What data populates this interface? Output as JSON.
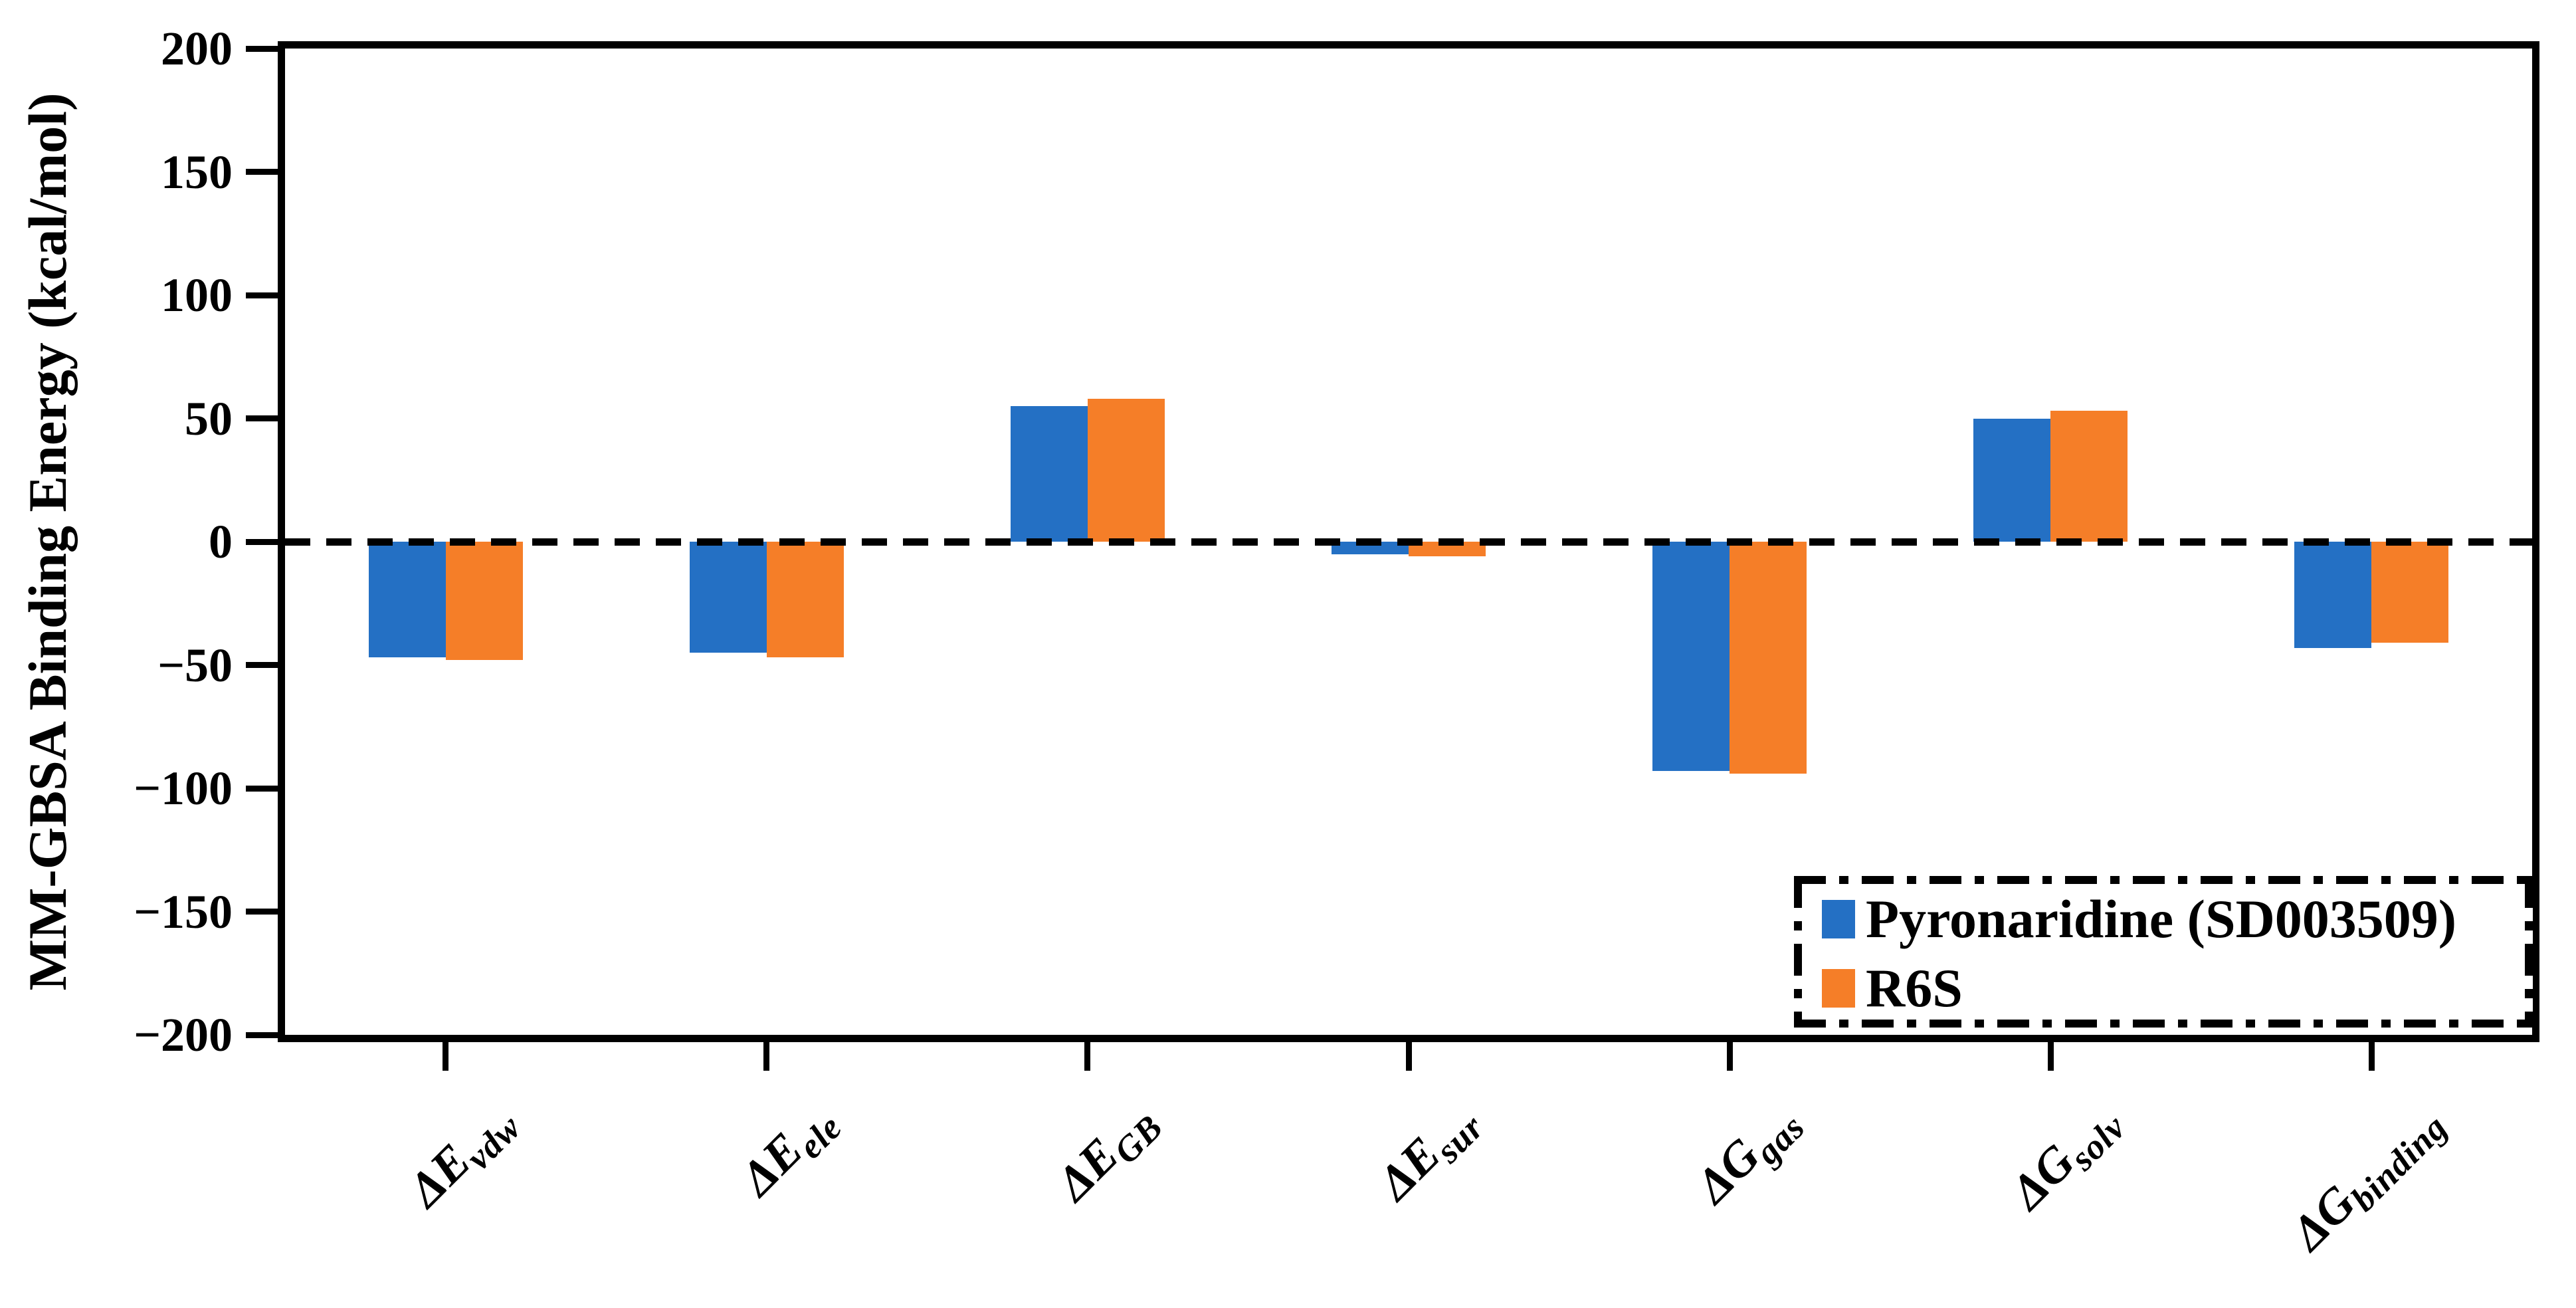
{
  "chart_data": {
    "type": "bar",
    "title": "",
    "xlabel": "",
    "ylabel": "MM-GBSA Binding Energy (kcal/mol)",
    "ylim": [
      -200,
      200
    ],
    "ytick_step": 50,
    "ytick_labels": [
      "200",
      "150",
      "100",
      "50",
      "0",
      "−50",
      "−100",
      "−150",
      "−200"
    ],
    "ytick_values": [
      200,
      150,
      100,
      50,
      0,
      -50,
      -100,
      -150,
      -200
    ],
    "grid": "off",
    "zero_line": "dashed",
    "legend_position": "lower-right-inside",
    "legend_border": "dash-dot",
    "categories": [
      {
        "main": "ΔE",
        "sub": "vdw"
      },
      {
        "main": "ΔE",
        "sub": "ele"
      },
      {
        "main": "ΔE",
        "sub": "GB"
      },
      {
        "main": "ΔE",
        "sub": "sur"
      },
      {
        "main": "ΔG",
        "sub": "gas"
      },
      {
        "main": "ΔG",
        "sub": "solv"
      },
      {
        "main": "ΔG",
        "sub": "binding"
      }
    ],
    "series": [
      {
        "name": "Pyronaridine (SD003509)",
        "color": "#2470C4",
        "values": [
          -47,
          -45,
          55,
          -5,
          -93,
          50,
          -43
        ]
      },
      {
        "name": "R6S",
        "color": "#F57E28",
        "values": [
          -48,
          -47,
          58,
          -6,
          -94,
          53,
          -41
        ]
      }
    ],
    "axis_color": "#000000",
    "background_color": "#FFFFFF"
  }
}
